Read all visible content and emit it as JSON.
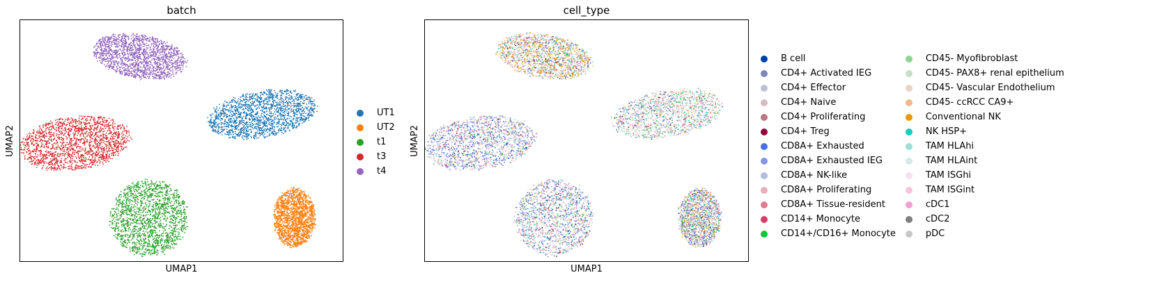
{
  "chart_data": [
    {
      "type": "scatter",
      "title": "batch",
      "xlabel": "UMAP1",
      "ylabel": "UMAP2",
      "xticks": [],
      "yticks": [],
      "grid": false,
      "legend_position": "right",
      "categories": [
        {
          "name": "UT1",
          "color": "#1f77b4"
        },
        {
          "name": "UT2",
          "color": "#ff7f0e"
        },
        {
          "name": "t1",
          "color": "#2ca02c"
        },
        {
          "name": "t3",
          "color": "#d62728"
        },
        {
          "name": "t4",
          "color": "#9467bd"
        }
      ],
      "clusters": [
        {
          "category": "t4",
          "center": [
            0.37,
            0.15
          ],
          "radii": [
            0.145,
            0.09
          ],
          "angle": 10,
          "weights": [
            0,
            0,
            0,
            0,
            1
          ]
        },
        {
          "category": "UT1",
          "center": [
            0.75,
            0.39
          ],
          "radii": [
            0.17,
            0.095
          ],
          "angle": -10,
          "weights": [
            1,
            0,
            0,
            0,
            0
          ]
        },
        {
          "category": "t3",
          "center": [
            0.17,
            0.51
          ],
          "radii": [
            0.17,
            0.11
          ],
          "angle": -8,
          "weights": [
            0,
            0,
            0,
            1,
            0
          ]
        },
        {
          "category": "t1",
          "center": [
            0.4,
            0.82
          ],
          "radii": [
            0.12,
            0.155
          ],
          "angle": -25,
          "weights": [
            0,
            0,
            1,
            0,
            0
          ]
        },
        {
          "category": "UT2",
          "center": [
            0.85,
            0.82
          ],
          "radii": [
            0.065,
            0.12
          ],
          "angle": 0,
          "weights": [
            0,
            1,
            0,
            0,
            0
          ]
        }
      ]
    },
    {
      "type": "scatter",
      "title": "cell_type",
      "xlabel": "UMAP1",
      "ylabel": "UMAP2",
      "xticks": [],
      "yticks": [],
      "grid": false,
      "legend_position": "right",
      "legend_columns": 2,
      "categories": [
        {
          "name": "B cell",
          "color": "#023fa5"
        },
        {
          "name": "CD4+ Activated IEG",
          "color": "#7d87b9"
        },
        {
          "name": "CD4+ Effector",
          "color": "#bec1d4"
        },
        {
          "name": "CD4+ Naive",
          "color": "#d6bcc0"
        },
        {
          "name": "CD4+ Proliferating",
          "color": "#bb7784"
        },
        {
          "name": "CD4+ Treg",
          "color": "#8e063b"
        },
        {
          "name": "CD8A+ Exhausted",
          "color": "#4a6fe3"
        },
        {
          "name": "CD8A+ Exhausted IEG",
          "color": "#8595e1"
        },
        {
          "name": "CD8A+ NK-like",
          "color": "#b5bbe3"
        },
        {
          "name": "CD8A+ Proliferating",
          "color": "#e6afb9"
        },
        {
          "name": "CD8A+ Tissue-resident",
          "color": "#e07b91"
        },
        {
          "name": "CD14+ Monocyte",
          "color": "#d33f6a"
        },
        {
          "name": "CD14+/CD16+ Monocyte",
          "color": "#11c638"
        },
        {
          "name": "CD45- Myofibroblast",
          "color": "#8dd593"
        },
        {
          "name": "CD45- PAX8+ renal epithelium",
          "color": "#c6dec7"
        },
        {
          "name": "CD45- Vascular Endothelium",
          "color": "#ead3c6"
        },
        {
          "name": "CD45- ccRCC CA9+",
          "color": "#f0b98d"
        },
        {
          "name": "Conventional NK",
          "color": "#ef9708"
        },
        {
          "name": "NK HSP+",
          "color": "#0fcfc0"
        },
        {
          "name": "TAM HLAhi",
          "color": "#9cded6"
        },
        {
          "name": "TAM HLAint",
          "color": "#d5eae7"
        },
        {
          "name": "TAM ISGhi",
          "color": "#f3e1eb"
        },
        {
          "name": "TAM ISGint",
          "color": "#f6c4e1"
        },
        {
          "name": "cDC1",
          "color": "#f79cd4"
        },
        {
          "name": "cDC2",
          "color": "#7f7f7f"
        },
        {
          "name": "pDC",
          "color": "#c7c7c7"
        }
      ],
      "clusters": [
        {
          "category": "t4",
          "center": [
            0.37,
            0.15
          ],
          "radii": [
            0.145,
            0.09
          ],
          "angle": 10,
          "weights": [
            1,
            2,
            3,
            3,
            1,
            1,
            2,
            2,
            2,
            2,
            1,
            1,
            2,
            3,
            4,
            3,
            8,
            10,
            1,
            2,
            2,
            2,
            1,
            1,
            1,
            2
          ]
        },
        {
          "category": "UT1",
          "center": [
            0.75,
            0.39
          ],
          "radii": [
            0.17,
            0.095
          ],
          "angle": -10,
          "weights": [
            1,
            3,
            4,
            4,
            1,
            1,
            2,
            3,
            3,
            2,
            1,
            1,
            2,
            4,
            6,
            5,
            2,
            1,
            2,
            4,
            5,
            3,
            1,
            1,
            1,
            3
          ]
        },
        {
          "category": "t3",
          "center": [
            0.17,
            0.51
          ],
          "radii": [
            0.17,
            0.11
          ],
          "angle": -8,
          "weights": [
            2,
            6,
            6,
            4,
            2,
            1,
            8,
            8,
            6,
            3,
            2,
            1,
            1,
            2,
            2,
            2,
            1,
            1,
            1,
            3,
            3,
            2,
            1,
            1,
            1,
            2
          ]
        },
        {
          "category": "t1",
          "center": [
            0.4,
            0.82
          ],
          "radii": [
            0.12,
            0.155
          ],
          "angle": -25,
          "weights": [
            2,
            6,
            5,
            4,
            2,
            1,
            6,
            6,
            5,
            3,
            2,
            1,
            2,
            3,
            3,
            4,
            2,
            1,
            2,
            3,
            3,
            2,
            1,
            1,
            1,
            2
          ]
        },
        {
          "category": "UT2",
          "center": [
            0.85,
            0.82
          ],
          "radii": [
            0.065,
            0.12
          ],
          "angle": 0,
          "weights": [
            1,
            4,
            3,
            3,
            1,
            1,
            5,
            5,
            3,
            2,
            1,
            1,
            2,
            4,
            4,
            4,
            6,
            3,
            1,
            3,
            3,
            2,
            1,
            1,
            1,
            2
          ]
        }
      ]
    }
  ]
}
